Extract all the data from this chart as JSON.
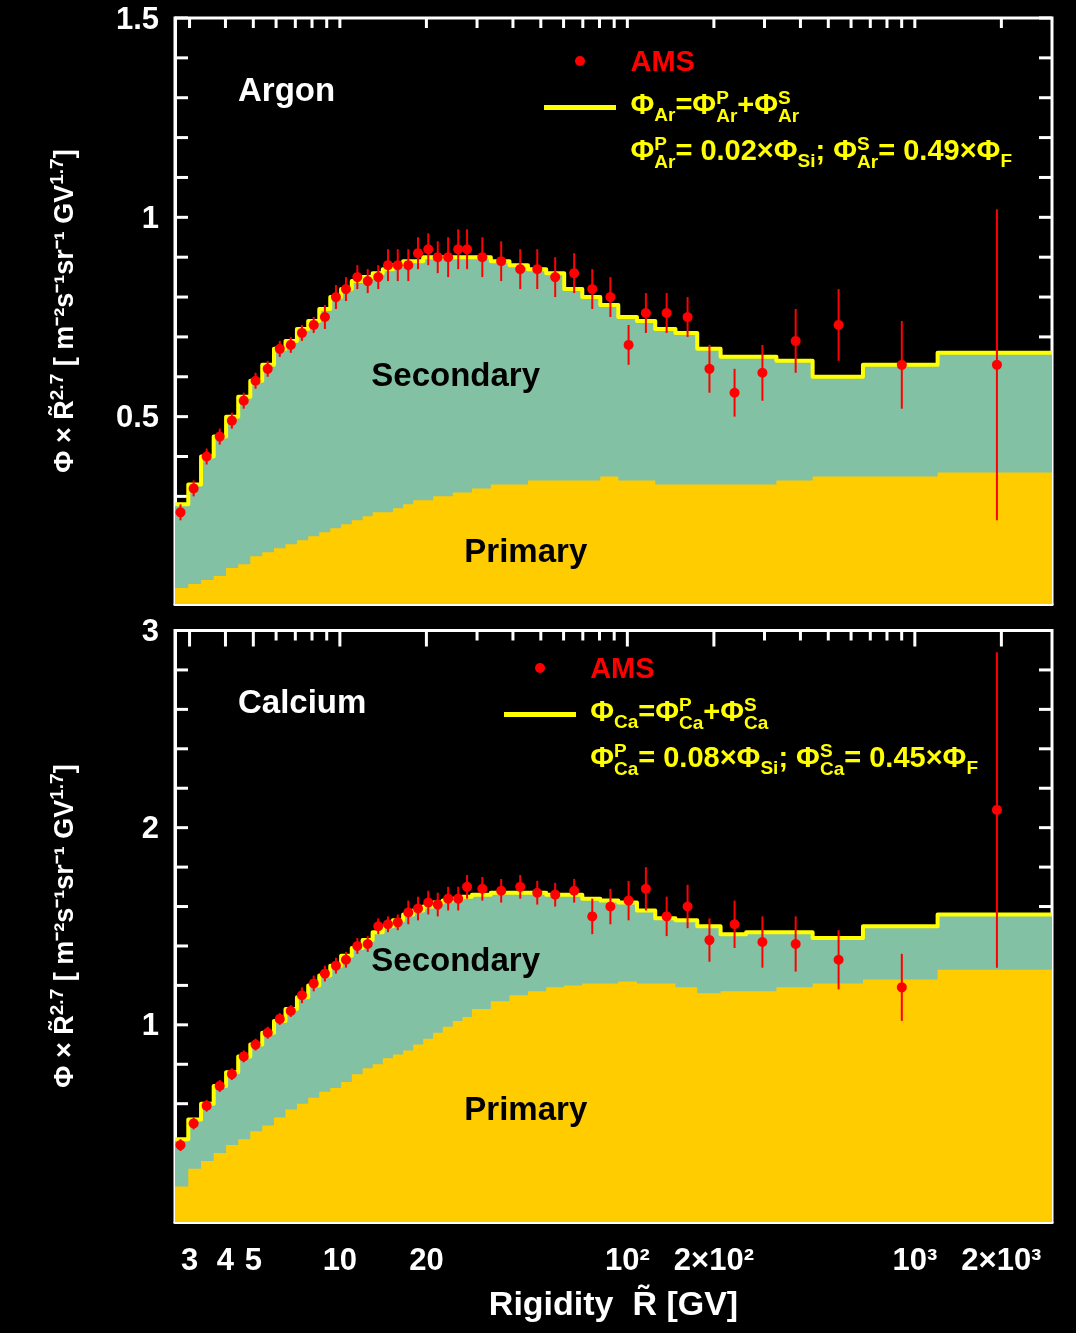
{
  "chart_data": [
    {
      "type": "area",
      "title": "Argon",
      "ylabel": "Φ × R̃$^{2.7}$ [ m⁻²s⁻¹sr⁻¹ GV$^{1.7}$]",
      "log": "x",
      "stacked": true,
      "legend": "top right",
      "tick_labels": "y",
      "annotations": [
        "Φ$^{P}$$_{Ar}$= 0.02×Φ$_{Si}$; Φ$^{S}$$_{Ar}$= 0.49×Φ$_{F}$"
      ],
      "xlim": [
        2.67,
        3000
      ],
      "ylim": [
        0.03,
        1.5
      ],
      "xticks": [
        {
          "value": 3,
          "label": null
        },
        {
          "value": 4,
          "label": null
        },
        {
          "value": 5,
          "label": null
        },
        {
          "value": 6,
          "label": null
        },
        {
          "value": 7,
          "label": null
        },
        {
          "value": 8,
          "label": null
        },
        {
          "value": 9,
          "label": null
        },
        {
          "value": 10,
          "label": null
        },
        {
          "value": 20,
          "label": null
        },
        {
          "value": 30,
          "label": null
        },
        {
          "value": 40,
          "label": null
        },
        {
          "value": 50,
          "label": null
        },
        {
          "value": 60,
          "label": null
        },
        {
          "value": 70,
          "label": null
        },
        {
          "value": 80,
          "label": null
        },
        {
          "value": 90,
          "label": null
        },
        {
          "value": 100,
          "label": null
        },
        {
          "value": 200,
          "label": null
        },
        {
          "value": 300,
          "label": null
        },
        {
          "value": 400,
          "label": null
        },
        {
          "value": 500,
          "label": null
        },
        {
          "value": 600,
          "label": null
        },
        {
          "value": 700,
          "label": null
        },
        {
          "value": 800,
          "label": null
        },
        {
          "value": 900,
          "label": null
        },
        {
          "value": 1000,
          "label": null
        },
        {
          "value": 2000,
          "label": null
        }
      ],
      "yticks": [
        {
          "value": 0.1,
          "label": null
        },
        {
          "value": 0.2,
          "label": null
        },
        {
          "value": 0.3,
          "label": null
        },
        {
          "value": 0.4,
          "label": null
        },
        0.5,
        {
          "value": 0.6,
          "label": null
        },
        {
          "value": 0.7,
          "label": null
        },
        {
          "value": 0.8,
          "label": null
        },
        {
          "value": 0.9,
          "label": null
        },
        1,
        {
          "value": 1.1,
          "label": null
        },
        {
          "value": 1.2,
          "label": null
        },
        {
          "value": 1.3,
          "label": null
        },
        {
          "value": 1.4,
          "label": null
        },
        1.5
      ],
      "series": [
        {
          "name": "Primary",
          "type": "area",
          "color": "#ffcc00",
          "x": [
            2.67,
            2.97,
            3.29,
            3.64,
            4.02,
            4.43,
            4.88,
            5.37,
            5.9,
            6.47,
            7.09,
            7.76,
            8.48,
            9.26,
            10.1,
            11,
            12,
            13,
            14.1,
            15.3,
            16.6,
            18,
            19.5,
            21.1,
            22.8,
            24.7,
            26.7,
            28.8,
            33.5,
            38.9,
            45.1,
            52.2,
            60.3,
            69.7,
            80.5,
            93,
            108,
            125,
            147,
            175,
            211,
            259,
            330,
            441,
            660,
            1200,
            3000
          ],
          "values": [
            0.07,
            0.08,
            0.09,
            0.1,
            0.12,
            0.13,
            0.15,
            0.16,
            0.17,
            0.18,
            0.19,
            0.2,
            0.21,
            0.22,
            0.23,
            0.24,
            0.25,
            0.26,
            0.26,
            0.27,
            0.28,
            0.29,
            0.29,
            0.3,
            0.3,
            0.31,
            0.31,
            0.32,
            0.33,
            0.33,
            0.34,
            0.34,
            0.34,
            0.34,
            0.35,
            0.34,
            0.34,
            0.33,
            0.33,
            0.33,
            0.33,
            0.33,
            0.34,
            0.35,
            0.35,
            0.36,
            0.36
          ]
        },
        {
          "name": "Secondary",
          "type": "area",
          "color": "#82c1a4",
          "x": [
            2.67,
            2.97,
            3.29,
            3.64,
            4.02,
            4.43,
            4.88,
            5.37,
            5.9,
            6.47,
            7.09,
            7.76,
            8.48,
            9.26,
            10.1,
            11,
            12,
            13,
            14.1,
            15.3,
            16.6,
            18,
            19.5,
            21.1,
            22.8,
            24.7,
            26.7,
            28.8,
            33.5,
            38.9,
            45.1,
            52.2,
            60.3,
            69.7,
            80.5,
            93,
            108,
            125,
            147,
            175,
            211,
            259,
            330,
            441,
            660,
            1200,
            3000
          ],
          "values": [
            0.21,
            0.25,
            0.31,
            0.35,
            0.38,
            0.42,
            0.44,
            0.47,
            0.5,
            0.51,
            0.53,
            0.54,
            0.56,
            0.58,
            0.59,
            0.6,
            0.6,
            0.6,
            0.61,
            0.61,
            0.61,
            0.6,
            0.61,
            0.6,
            0.6,
            0.59,
            0.59,
            0.58,
            0.56,
            0.55,
            0.53,
            0.52,
            0.48,
            0.46,
            0.43,
            0.41,
            0.4,
            0.39,
            0.38,
            0.34,
            0.32,
            0.32,
            0.3,
            0.25,
            0.28,
            0.3,
            0.3
          ]
        },
        {
          "name": "Φ$_{Ar}$=Φ$^{P}$$_{Ar}$+Φ$^{S}$$_{Ar}$",
          "type": "step",
          "color": "#ffff00",
          "x": [
            2.67,
            2.97,
            3.29,
            3.64,
            4.02,
            4.43,
            4.88,
            5.37,
            5.9,
            6.47,
            7.09,
            7.76,
            8.48,
            9.26,
            10.1,
            11,
            12,
            13,
            14.1,
            15.3,
            16.6,
            18,
            19.5,
            21.1,
            22.8,
            24.7,
            26.7,
            28.8,
            33.5,
            38.9,
            45.1,
            52.2,
            60.3,
            69.7,
            80.5,
            93,
            108,
            125,
            147,
            175,
            211,
            259,
            330,
            441,
            660,
            1200,
            3000
          ],
          "values": [
            0.28,
            0.33,
            0.4,
            0.45,
            0.5,
            0.55,
            0.59,
            0.63,
            0.67,
            0.69,
            0.72,
            0.74,
            0.77,
            0.8,
            0.82,
            0.84,
            0.85,
            0.86,
            0.87,
            0.88,
            0.89,
            0.89,
            0.9,
            0.9,
            0.9,
            0.9,
            0.9,
            0.9,
            0.89,
            0.88,
            0.87,
            0.86,
            0.82,
            0.8,
            0.78,
            0.75,
            0.74,
            0.72,
            0.71,
            0.67,
            0.65,
            0.65,
            0.64,
            0.6,
            0.63,
            0.66,
            0.66
          ]
        },
        {
          "name": "AMS",
          "type": "scatter",
          "marker": "circle",
          "color": "#ff0000",
          "x": [
            2.79,
            3.1,
            3.44,
            3.82,
            4.21,
            4.63,
            5.09,
            5.61,
            6.18,
            6.75,
            7.38,
            8.11,
            8.87,
            9.69,
            10.5,
            11.5,
            12.5,
            13.6,
            14.7,
            15.9,
            17.3,
            18.7,
            20.3,
            21.9,
            23.8,
            25.8,
            27.7,
            31.3,
            36.4,
            42.4,
            48.6,
            56.1,
            65.3,
            75.5,
            87.3,
            101,
            116,
            137,
            162,
            193,
            236,
            295,
            385,
            543,
            901,
            1930
          ],
          "values": [
            0.26,
            0.32,
            0.4,
            0.45,
            0.49,
            0.54,
            0.59,
            0.62,
            0.67,
            0.68,
            0.71,
            0.73,
            0.75,
            0.8,
            0.82,
            0.85,
            0.84,
            0.85,
            0.88,
            0.88,
            0.88,
            0.91,
            0.92,
            0.9,
            0.9,
            0.92,
            0.92,
            0.9,
            0.89,
            0.87,
            0.87,
            0.85,
            0.86,
            0.82,
            0.8,
            0.68,
            0.76,
            0.76,
            0.75,
            0.62,
            0.56,
            0.61,
            0.69,
            0.73,
            0.63,
            0.63
          ],
          "errors": [
            0.02,
            0.02,
            0.02,
            0.02,
            0.02,
            0.02,
            0.02,
            0.02,
            0.02,
            0.02,
            0.02,
            0.02,
            0.03,
            0.03,
            0.03,
            0.03,
            0.03,
            0.03,
            0.04,
            0.04,
            0.04,
            0.04,
            0.04,
            0.04,
            0.05,
            0.05,
            0.05,
            0.05,
            0.05,
            0.05,
            0.05,
            0.05,
            0.05,
            0.05,
            0.05,
            0.05,
            0.05,
            0.05,
            0.05,
            0.06,
            0.06,
            0.07,
            0.08,
            0.09,
            0.11,
            0.39
          ]
        }
      ]
    },
    {
      "type": "area",
      "title": "Calcium",
      "ylabel": "Φ × R̃$^{2.7}$ [ m⁻²s⁻¹sr⁻¹ GV$^{1.7}$]",
      "xlabel": "Rigidity  R̃ [GV]",
      "log": "x",
      "stacked": true,
      "legend": "top right",
      "annotations": [
        "Φ$^{P}$$_{Ca}$= 0.08×Φ$_{Si}$; Φ$^{S}$$_{Ca}$= 0.45×Φ$_{F}$"
      ],
      "xlim": [
        2.67,
        3000
      ],
      "ylim": [
        0,
        3
      ],
      "xticks": [
        3,
        4,
        5,
        {
          "value": 6,
          "label": null
        },
        {
          "value": 7,
          "label": null
        },
        {
          "value": 8,
          "label": null
        },
        {
          "value": 9,
          "label": null
        },
        10,
        20,
        {
          "value": 30,
          "label": null
        },
        {
          "value": 40,
          "label": null
        },
        {
          "value": 50,
          "label": null
        },
        {
          "value": 60,
          "label": null
        },
        {
          "value": 70,
          "label": null
        },
        {
          "value": 80,
          "label": null
        },
        {
          "value": 90,
          "label": null
        },
        {
          "value": 100,
          "label": "10²"
        },
        {
          "value": 200,
          "label": "2×10²"
        },
        {
          "value": 300,
          "label": null
        },
        {
          "value": 400,
          "label": null
        },
        {
          "value": 500,
          "label": null
        },
        {
          "value": 600,
          "label": null
        },
        {
          "value": 700,
          "label": null
        },
        {
          "value": 800,
          "label": null
        },
        {
          "value": 900,
          "label": null
        },
        {
          "value": 1000,
          "label": "10³"
        },
        {
          "value": 2000,
          "label": "2×10³"
        }
      ],
      "yticks": [
        {
          "value": 0.2,
          "label": null
        },
        {
          "value": 0.4,
          "label": null
        },
        {
          "value": 0.6,
          "label": null
        },
        {
          "value": 0.8,
          "label": null
        },
        1,
        {
          "value": 1.2,
          "label": null
        },
        {
          "value": 1.4,
          "label": null
        },
        {
          "value": 1.6,
          "label": null
        },
        {
          "value": 1.8,
          "label": null
        },
        2,
        {
          "value": 2.2,
          "label": null
        },
        {
          "value": 2.4,
          "label": null
        },
        {
          "value": 2.6,
          "label": null
        },
        {
          "value": 2.8,
          "label": null
        },
        3
      ],
      "series": [
        {
          "name": "Primary",
          "type": "area",
          "color": "#ffcc00",
          "x": [
            2.67,
            2.97,
            3.29,
            3.64,
            4.02,
            4.43,
            4.88,
            5.37,
            5.9,
            6.47,
            7.09,
            7.76,
            8.48,
            9.26,
            10.1,
            11,
            12,
            13,
            14.1,
            15.3,
            16.6,
            18,
            19.5,
            21.1,
            22.8,
            24.7,
            26.7,
            28.8,
            33.5,
            38.9,
            45.1,
            52.2,
            60.3,
            69.7,
            80.5,
            93,
            108,
            125,
            147,
            175,
            211,
            259,
            330,
            441,
            660,
            1200,
            3000
          ],
          "values": [
            0.18,
            0.27,
            0.31,
            0.35,
            0.39,
            0.42,
            0.46,
            0.49,
            0.53,
            0.57,
            0.6,
            0.63,
            0.66,
            0.68,
            0.71,
            0.75,
            0.78,
            0.8,
            0.83,
            0.85,
            0.87,
            0.9,
            0.93,
            0.96,
            0.99,
            1.02,
            1.04,
            1.08,
            1.12,
            1.15,
            1.17,
            1.19,
            1.2,
            1.21,
            1.21,
            1.22,
            1.21,
            1.21,
            1.19,
            1.16,
            1.17,
            1.17,
            1.19,
            1.21,
            1.23,
            1.28,
            1.28
          ]
        },
        {
          "name": "Secondary",
          "type": "area",
          "color": "#82c1a4",
          "x": [
            2.67,
            2.97,
            3.29,
            3.64,
            4.02,
            4.43,
            4.88,
            5.37,
            5.9,
            6.47,
            7.09,
            7.76,
            8.48,
            9.26,
            10.1,
            11,
            12,
            13,
            14.1,
            15.3,
            16.6,
            18,
            19.5,
            21.1,
            22.8,
            24.7,
            26.7,
            28.8,
            33.5,
            38.9,
            45.1,
            52.2,
            60.3,
            69.7,
            80.5,
            93,
            108,
            125,
            147,
            175,
            211,
            259,
            330,
            441,
            660,
            1200,
            3000
          ],
          "values": [
            0.24,
            0.25,
            0.29,
            0.34,
            0.37,
            0.42,
            0.44,
            0.47,
            0.49,
            0.51,
            0.54,
            0.57,
            0.59,
            0.62,
            0.64,
            0.64,
            0.65,
            0.67,
            0.67,
            0.68,
            0.69,
            0.68,
            0.67,
            0.66,
            0.64,
            0.62,
            0.61,
            0.58,
            0.55,
            0.52,
            0.5,
            0.47,
            0.46,
            0.43,
            0.42,
            0.4,
            0.37,
            0.33,
            0.34,
            0.34,
            0.29,
            0.3,
            0.28,
            0.23,
            0.27,
            0.28,
            0.28
          ]
        },
        {
          "name": "Φ$_{Ca}$=Φ$^{P}$$_{Ca}$+Φ$^{S}$$_{Ca}$",
          "type": "step",
          "color": "#ffff00",
          "x": [
            2.67,
            2.97,
            3.29,
            3.64,
            4.02,
            4.43,
            4.88,
            5.37,
            5.9,
            6.47,
            7.09,
            7.76,
            8.48,
            9.26,
            10.1,
            11,
            12,
            13,
            14.1,
            15.3,
            16.6,
            18,
            19.5,
            21.1,
            22.8,
            24.7,
            26.7,
            28.8,
            33.5,
            38.9,
            45.1,
            52.2,
            60.3,
            69.7,
            80.5,
            93,
            108,
            125,
            147,
            175,
            211,
            259,
            330,
            441,
            660,
            1200,
            3000
          ],
          "values": [
            0.42,
            0.52,
            0.6,
            0.69,
            0.76,
            0.84,
            0.9,
            0.96,
            1.02,
            1.08,
            1.14,
            1.2,
            1.25,
            1.3,
            1.35,
            1.39,
            1.43,
            1.47,
            1.5,
            1.53,
            1.56,
            1.58,
            1.6,
            1.62,
            1.63,
            1.64,
            1.65,
            1.66,
            1.67,
            1.67,
            1.67,
            1.66,
            1.66,
            1.64,
            1.63,
            1.62,
            1.58,
            1.54,
            1.53,
            1.5,
            1.46,
            1.47,
            1.47,
            1.44,
            1.5,
            1.56,
            1.56
          ]
        },
        {
          "name": "AMS",
          "type": "scatter",
          "marker": "circle",
          "color": "#ff0000",
          "x": [
            2.79,
            3.1,
            3.44,
            3.82,
            4.21,
            4.63,
            5.09,
            5.61,
            6.18,
            6.75,
            7.38,
            8.11,
            8.87,
            9.69,
            10.5,
            11.5,
            12.5,
            13.6,
            14.7,
            15.9,
            17.3,
            18.7,
            20.3,
            21.9,
            23.8,
            25.8,
            27.7,
            31.3,
            36.4,
            42.4,
            48.6,
            56.1,
            65.3,
            75.5,
            87.3,
            101,
            116,
            137,
            162,
            193,
            236,
            295,
            385,
            543,
            901,
            1930
          ],
          "values": [
            0.39,
            0.5,
            0.59,
            0.69,
            0.75,
            0.84,
            0.9,
            0.96,
            1.03,
            1.07,
            1.15,
            1.21,
            1.26,
            1.3,
            1.33,
            1.4,
            1.41,
            1.5,
            1.51,
            1.52,
            1.57,
            1.59,
            1.62,
            1.61,
            1.64,
            1.64,
            1.7,
            1.69,
            1.68,
            1.7,
            1.67,
            1.66,
            1.68,
            1.55,
            1.6,
            1.63,
            1.69,
            1.55,
            1.6,
            1.43,
            1.51,
            1.42,
            1.41,
            1.33,
            1.19,
            2.09
          ],
          "errors": [
            0.03,
            0.03,
            0.03,
            0.03,
            0.03,
            0.03,
            0.03,
            0.03,
            0.03,
            0.03,
            0.04,
            0.04,
            0.04,
            0.04,
            0.04,
            0.04,
            0.04,
            0.04,
            0.04,
            0.04,
            0.06,
            0.06,
            0.06,
            0.06,
            0.06,
            0.06,
            0.06,
            0.06,
            0.06,
            0.06,
            0.06,
            0.06,
            0.06,
            0.09,
            0.09,
            0.1,
            0.11,
            0.1,
            0.11,
            0.11,
            0.12,
            0.13,
            0.14,
            0.15,
            0.17,
            0.8
          ]
        }
      ]
    }
  ]
}
